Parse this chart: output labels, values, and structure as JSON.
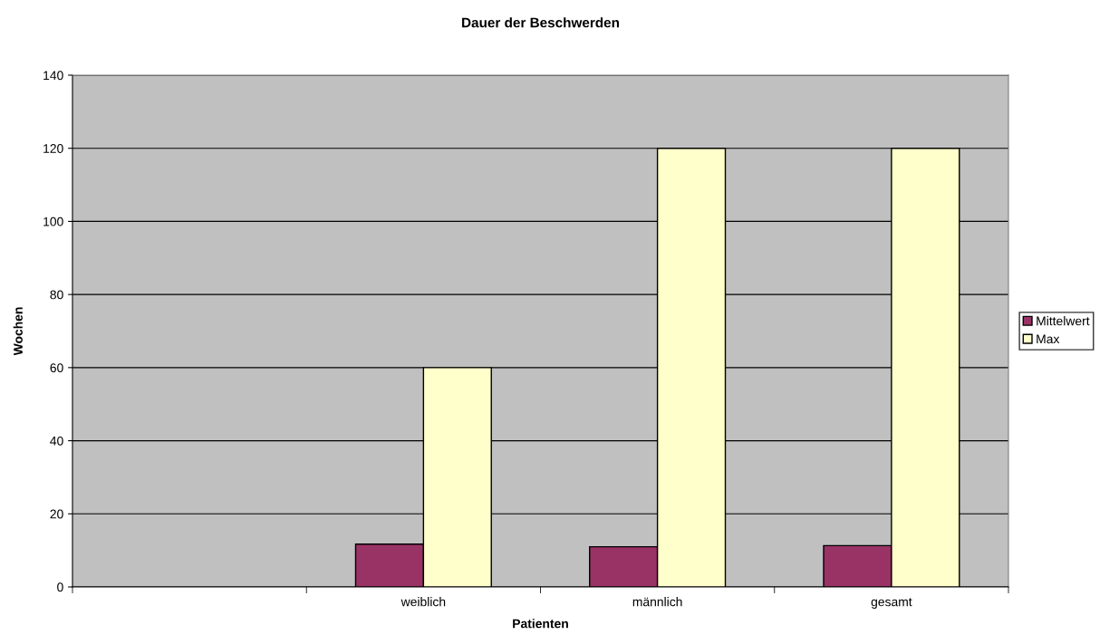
{
  "chart_data": {
    "type": "bar",
    "title": "Dauer der Beschwerden",
    "xlabel": "Patienten",
    "ylabel": "Wochen",
    "categories": [
      null,
      "weiblich",
      "männlich",
      "gesamt"
    ],
    "series": [
      {
        "name": "Mittelwert",
        "color": "#993366",
        "values": [
          null,
          11.7,
          11.0,
          11.3
        ]
      },
      {
        "name": "Max",
        "color": "#ffffcc",
        "values": [
          null,
          60,
          120,
          120
        ]
      }
    ],
    "ylim": [
      0,
      140
    ],
    "yticks": [
      0,
      20,
      40,
      60,
      80,
      100,
      120,
      140
    ],
    "grid": "y",
    "legend": "right"
  }
}
